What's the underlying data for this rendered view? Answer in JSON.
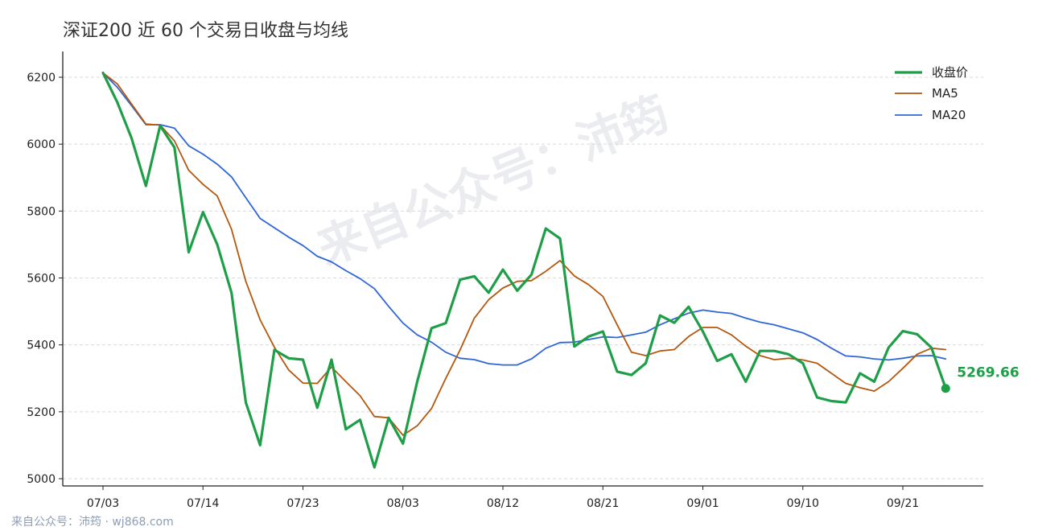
{
  "title": "深证200 近 60 个交易日收盘与均线",
  "footer": "来自公众号：沛筠 · wj868.com",
  "watermark": "来自公众号：沛筠",
  "last_value_label": "5269.66",
  "colors": {
    "close": "#1e9e47",
    "ma5": "#b3580f",
    "ma20": "#2f66d6",
    "grid": "#d9d9d9"
  },
  "chart_data": {
    "type": "line",
    "title": "深证200 近 60 个交易日收盘与均线",
    "xlabel": "",
    "ylabel": "",
    "ylim": [
      4975,
      6270
    ],
    "yticks": [
      5000,
      5200,
      5400,
      5600,
      5800,
      6000,
      6200
    ],
    "xtick_labels": [
      "07/03",
      "07/14",
      "07/23",
      "08/03",
      "08/12",
      "08/21",
      "09/01",
      "09/10",
      "09/21"
    ],
    "xtick_index": [
      0,
      7,
      14,
      21,
      28,
      35,
      42,
      49,
      56
    ],
    "grid": "horizontal dashed",
    "legend_position": "top-right",
    "series": [
      {
        "name": "收盘价",
        "values": [
          6213,
          6125,
          6018,
          5875,
          6055,
          5990,
          5677,
          5797,
          5700,
          5555,
          5228,
          5100,
          5385,
          5360,
          5356,
          5212,
          5356,
          5148,
          5176,
          5034,
          5182,
          5105,
          5290,
          5450,
          5465,
          5595,
          5605,
          5556,
          5625,
          5562,
          5610,
          5748,
          5718,
          5395,
          5425,
          5440,
          5320,
          5310,
          5345,
          5488,
          5466,
          5514,
          5440,
          5352,
          5372,
          5290,
          5382,
          5382,
          5372,
          5345,
          5243,
          5232,
          5228,
          5315,
          5290,
          5392,
          5441,
          5432,
          5392,
          5270
        ]
      },
      {
        "name": "MA5",
        "values": [
          6213,
          6180,
          6120,
          6060,
          6057,
          6010,
          5922,
          5880,
          5845,
          5745,
          5590,
          5475,
          5393,
          5325,
          5286,
          5285,
          5334,
          5290,
          5248,
          5186,
          5182,
          5130,
          5158,
          5210,
          5300,
          5385,
          5480,
          5535,
          5570,
          5590,
          5592,
          5620,
          5652,
          5606,
          5580,
          5545,
          5460,
          5378,
          5368,
          5382,
          5386,
          5425,
          5452,
          5452,
          5430,
          5396,
          5368,
          5356,
          5360,
          5355,
          5345,
          5315,
          5285,
          5272,
          5262,
          5290,
          5330,
          5372,
          5390,
          5386
        ]
      },
      {
        "name": "MA20",
        "values": [
          6213,
          6170,
          6115,
          6058,
          6058,
          6048,
          5995,
          5970,
          5940,
          5902,
          5840,
          5778,
          5750,
          5722,
          5697,
          5665,
          5648,
          5622,
          5598,
          5568,
          5515,
          5465,
          5430,
          5408,
          5378,
          5360,
          5356,
          5344,
          5340,
          5340,
          5358,
          5390,
          5407,
          5408,
          5416,
          5424,
          5422,
          5430,
          5438,
          5460,
          5478,
          5495,
          5504,
          5498,
          5494,
          5480,
          5468,
          5460,
          5448,
          5436,
          5416,
          5390,
          5367,
          5364,
          5358,
          5355,
          5360,
          5367,
          5368,
          5358
        ]
      }
    ]
  }
}
